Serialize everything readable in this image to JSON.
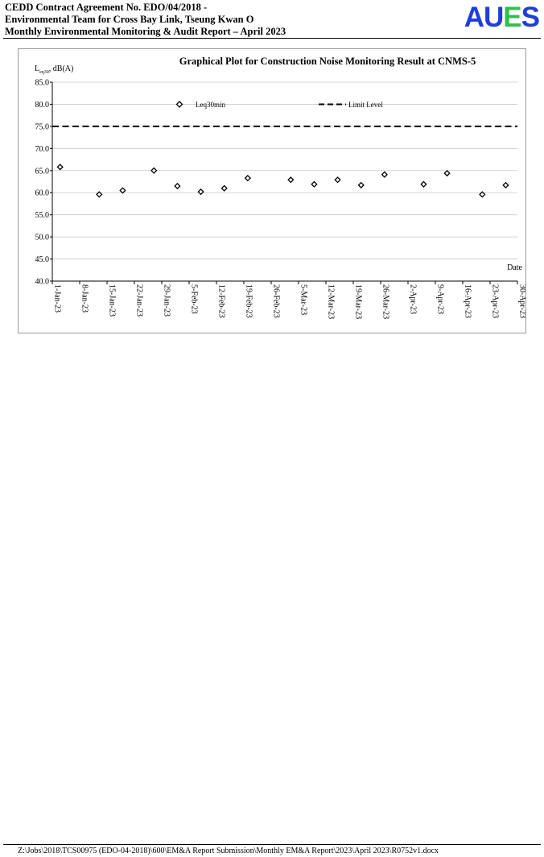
{
  "header": {
    "line1": "CEDD Contract Agreement No. EDO/04/2018 -",
    "line2": "Environmental Team for Cross Bay Link, Tseung Kwan O",
    "line3": "Monthly Environmental Monitoring & Audit Report – April 2023",
    "logo_letters": [
      {
        "char": "A",
        "color": "#1f3fd6"
      },
      {
        "char": "U",
        "color": "#1f3fd6"
      },
      {
        "char": "E",
        "color": "#2dc24a"
      },
      {
        "char": "S",
        "color": "#1f3fd6"
      }
    ]
  },
  "chart_data": {
    "type": "scatter",
    "title": "Graphical Plot for Construction Noise Monitoring Result at CNMS-5",
    "ylabel_main": "L",
    "ylabel_sub": "eq30",
    "ylabel_unit": ", dB(A)",
    "xlabel": "Date",
    "ylim": [
      40,
      85
    ],
    "yticks": [
      "40.0",
      "45.0",
      "50.0",
      "55.0",
      "60.0",
      "65.0",
      "70.0",
      "75.0",
      "80.0",
      "85.0"
    ],
    "xlim": [
      "2023-01-01",
      "2023-04-30"
    ],
    "xticks": [
      "1-Jan-23",
      "8-Jan-23",
      "15-Jan-23",
      "22-Jan-23",
      "29-Jan-23",
      "5-Feb-23",
      "12-Feb-23",
      "19-Feb-23",
      "26-Feb-23",
      "5-Mar-23",
      "12-Mar-23",
      "19-Mar-23",
      "26-Mar-23",
      "2-Apr-23",
      "9-Apr-23",
      "16-Apr-23",
      "23-Apr-23",
      "30-Apr-23"
    ],
    "legend": "top",
    "series": [
      {
        "name": "Leq30min",
        "marker": "diamond",
        "x": [
          "2023-01-03",
          "2023-01-13",
          "2023-01-19",
          "2023-01-27",
          "2023-02-02",
          "2023-02-08",
          "2023-02-14",
          "2023-02-20",
          "2023-03-03",
          "2023-03-09",
          "2023-03-15",
          "2023-03-21",
          "2023-03-27",
          "2023-04-06",
          "2023-04-12",
          "2023-04-21",
          "2023-04-27"
        ],
        "y": [
          65.8,
          59.6,
          60.5,
          65.0,
          61.5,
          60.2,
          61.0,
          63.3,
          62.9,
          61.9,
          62.9,
          61.7,
          64.1,
          61.9,
          64.4,
          59.6,
          61.7
        ]
      },
      {
        "name": "Limit Level",
        "style": "dashed",
        "x": [
          "2023-01-01",
          "2023-04-30"
        ],
        "y": [
          75,
          75
        ]
      }
    ]
  },
  "footer": {
    "path": "Z:\\Jobs\\2018\\TCS00975 (EDO-04-2018)\\600\\EM&A Report Submission\\Monthly EM&A Report\\2023\\April 2023\\R0752v1.docx"
  }
}
